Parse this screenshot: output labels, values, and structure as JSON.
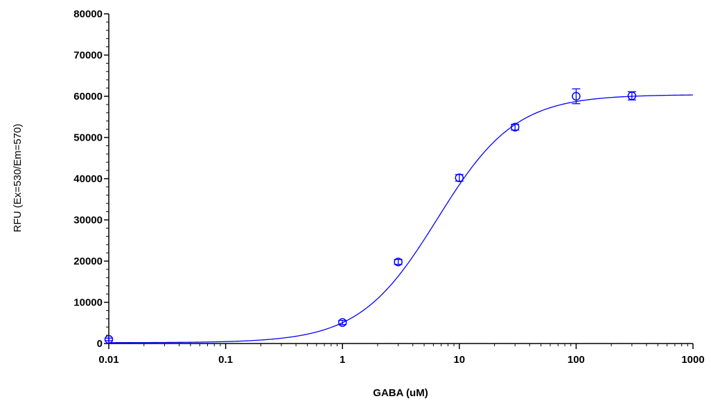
{
  "chart_data": {
    "type": "scatter",
    "xlabel": "GABA (uM)",
    "ylabel": "RFU (Ex=530/Em=570)",
    "x_scale": "log",
    "xlim": [
      0.01,
      1000
    ],
    "ylim": [
      0,
      80000
    ],
    "x_ticks": [
      0.01,
      0.1,
      1,
      10,
      100,
      1000
    ],
    "x_tick_labels": [
      "0.01",
      "0.1",
      "1",
      "10",
      "100",
      "1000"
    ],
    "y_ticks": [
      0,
      10000,
      20000,
      30000,
      40000,
      50000,
      60000,
      70000,
      80000
    ],
    "y_tick_labels": [
      "0",
      "10000",
      "20000",
      "30000",
      "40000",
      "50000",
      "60000",
      "70000",
      "80000"
    ],
    "grid": false,
    "colors": {
      "series": "#0000ff",
      "axis": "#000000"
    },
    "series": [
      {
        "marker": "open-circle",
        "points": [
          {
            "x": 0.01,
            "y": 1000,
            "err": 300
          },
          {
            "x": 1,
            "y": 5100,
            "err": 500
          },
          {
            "x": 3,
            "y": 19800,
            "err": 600
          },
          {
            "x": 10,
            "y": 40200,
            "err": 800
          },
          {
            "x": 30,
            "y": 52500,
            "err": 700
          },
          {
            "x": 100,
            "y": 60000,
            "err": 1800
          },
          {
            "x": 300,
            "y": 60100,
            "err": 1000
          }
        ],
        "fit": {
          "model": "4PL",
          "bottom": 200,
          "top": 60400,
          "ec50": 6.5,
          "hill": 1.3
        }
      }
    ]
  }
}
